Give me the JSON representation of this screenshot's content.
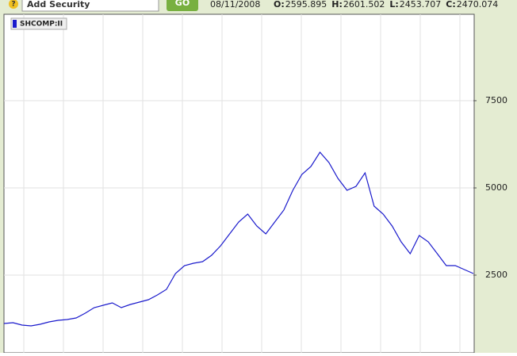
{
  "toolbar": {
    "help": "?",
    "search": "Add Security",
    "button": "GO",
    "date": "08/11/2008",
    "quote": [
      {
        "label": "O:",
        "value": "2595.895"
      },
      {
        "label": "H:",
        "value": "2601.502"
      },
      {
        "label": "L:",
        "value": "2453.707"
      },
      {
        "label": "C:",
        "value": "2470.074"
      }
    ]
  },
  "chart_data": {
    "type": "line",
    "series": [
      {
        "name": "SHCOMP:II",
        "color": "#1a1acc",
        "values": [
          1114,
          1136,
          1068,
          1045,
          1091,
          1159,
          1205,
          1227,
          1273,
          1409,
          1568,
          1636,
          1705,
          1568,
          1659,
          1727,
          1795,
          1932,
          2091,
          2545,
          2773,
          2841,
          2886,
          3068,
          3341,
          3682,
          4023,
          4250,
          3909,
          3682,
          4023,
          4364,
          4932,
          5386,
          5614,
          6023,
          5727,
          5273,
          4932,
          5045,
          5432,
          4477,
          4250,
          3909,
          3455,
          3114,
          3636,
          3455,
          3114,
          2773,
          2773,
          2659,
          2545
        ]
      }
    ],
    "ylim": [
      273,
      9977
    ],
    "yticks": [
      2500,
      5000,
      7500
    ],
    "grid": true
  }
}
